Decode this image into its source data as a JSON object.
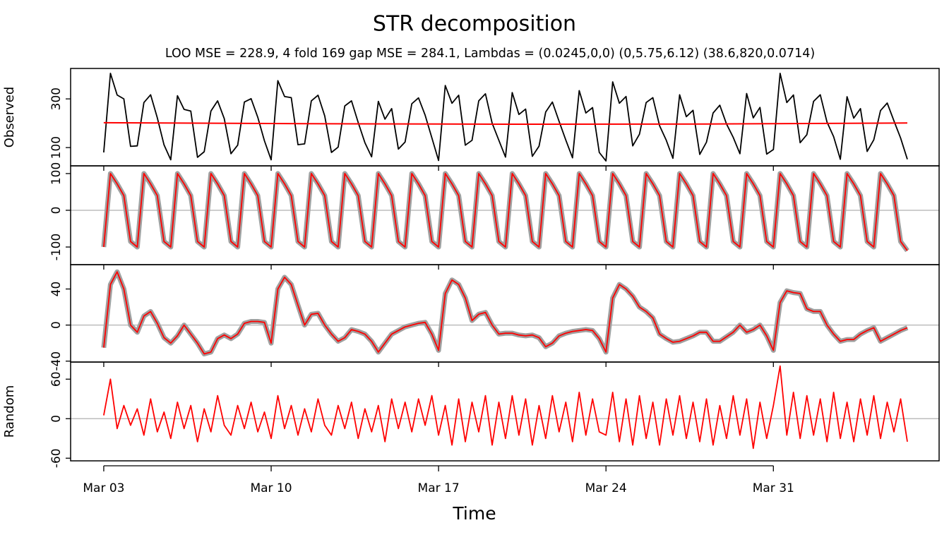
{
  "chart_data": {
    "type": "line",
    "title": "STR decomposition",
    "subtitle": "LOO MSE = 228.9, 4 fold 169 gap MSE = 284.1, Lambdas = (0.0245,0,0) (0,5.75,6.12) (38.6,820,0.0714)",
    "xlabel": "Time",
    "xlim": [
      -0.99,
      24.95
    ],
    "xticks": [
      {
        "value": 0,
        "label": "Mar 03"
      },
      {
        "value": 5,
        "label": "Mar 10"
      },
      {
        "value": 10,
        "label": "Mar 17"
      },
      {
        "value": 15,
        "label": "Mar 24"
      },
      {
        "value": 20,
        "label": "Mar 31"
      }
    ],
    "x": [
      0,
      0.2,
      0.4,
      0.6,
      0.8,
      1,
      1.2,
      1.4,
      1.6,
      1.8,
      2,
      2.2,
      2.4,
      2.6,
      2.8,
      3,
      3.2,
      3.4,
      3.6,
      3.8,
      4,
      4.2,
      4.4,
      4.6,
      4.8,
      5,
      5.2,
      5.4,
      5.6,
      5.8,
      6,
      6.2,
      6.4,
      6.6,
      6.8,
      7,
      7.2,
      7.4,
      7.6,
      7.8,
      8,
      8.2,
      8.4,
      8.6,
      8.8,
      9,
      9.2,
      9.4,
      9.6,
      9.8,
      10,
      10.2,
      10.4,
      10.6,
      10.8,
      11,
      11.2,
      11.4,
      11.6,
      11.8,
      12,
      12.2,
      12.4,
      12.6,
      12.8,
      13,
      13.2,
      13.4,
      13.6,
      13.8,
      14,
      14.2,
      14.4,
      14.6,
      14.8,
      15,
      15.2,
      15.4,
      15.6,
      15.8,
      16,
      16.2,
      16.4,
      16.6,
      16.8,
      17,
      17.2,
      17.4,
      17.6,
      17.8,
      18,
      18.2,
      18.4,
      18.6,
      18.8,
      19,
      19.2,
      19.4,
      19.6,
      19.8,
      20,
      20.2,
      20.4,
      20.6,
      20.8,
      21,
      21.2,
      21.4,
      21.6,
      21.8,
      22,
      22.2,
      22.4,
      22.6,
      22.8,
      23,
      23.2,
      23.4,
      23.6,
      23.8,
      24
    ],
    "panels": [
      {
        "ylabel": "Observed",
        "color": "#000000",
        "ylim": [
          25,
          425
        ],
        "yticks": [
          100,
          300
        ],
        "values": [
          80,
          405,
          316,
          300,
          105,
          107,
          285,
          317,
          222,
          111,
          50,
          313,
          257,
          250,
          60,
          83,
          250,
          292,
          219,
          75,
          110,
          287,
          301,
          224,
          128,
          50,
          375,
          310,
          305,
          112,
          115,
          292,
          315,
          230,
          80,
          102,
          271,
          292,
          203,
          120,
          62,
          290,
          217,
          260,
          94,
          123,
          280,
          304,
          233,
          140,
          47,
          355,
          282,
          315,
          110,
          130,
          292,
          321,
          200,
          130,
          61,
          326,
          236,
          258,
          64,
          106,
          246,
          287,
          208,
          131,
          58,
          334,
          242,
          264,
          80,
          45,
          370,
          282,
          310,
          107,
          155,
          285,
          305,
          190,
          130,
          56,
          317,
          227,
          253,
          72,
          122,
          242,
          274,
          197,
          142,
          75,
          322,
          222,
          265,
          73,
          92,
          405,
          285,
          316,
          120,
          153,
          290,
          317,
          205,
          145,
          52,
          309,
          221,
          260,
          84,
          132,
          252,
          283,
          210,
          139,
          52
        ],
        "overlay": {
          "color": "#ff0000",
          "x": [
            0,
            6,
            12,
            18,
            24
          ],
          "values": [
            202,
            198,
            196,
            197,
            201
          ]
        }
      },
      {
        "color": "#ff0000",
        "band_color": "#a0a0a0",
        "ylim": [
          -148,
          121
        ],
        "yticks": [
          -100,
          0,
          100
        ],
        "values": [
          -100,
          100,
          72,
          40,
          -85,
          -100,
          100,
          72,
          40,
          -85,
          -100,
          100,
          72,
          40,
          -85,
          -100,
          100,
          72,
          40,
          -85,
          -100,
          100,
          72,
          40,
          -85,
          -100,
          100,
          72,
          40,
          -85,
          -100,
          100,
          72,
          40,
          -85,
          -100,
          100,
          72,
          40,
          -85,
          -100,
          100,
          72,
          40,
          -85,
          -100,
          100,
          72,
          40,
          -85,
          -100,
          100,
          72,
          40,
          -85,
          -100,
          100,
          72,
          40,
          -85,
          -100,
          100,
          72,
          40,
          -85,
          -100,
          100,
          72,
          40,
          -85,
          -100,
          100,
          72,
          40,
          -85,
          -100,
          100,
          72,
          40,
          -85,
          -100,
          100,
          72,
          40,
          -85,
          -100,
          100,
          72,
          40,
          -85,
          -100,
          100,
          72,
          40,
          -85,
          -100,
          100,
          72,
          40,
          -85,
          -100,
          100,
          72,
          40,
          -85,
          -100,
          100,
          72,
          40,
          -85,
          -100,
          100,
          72,
          40,
          -85,
          -100,
          100,
          72,
          40,
          -85,
          -110
        ]
      },
      {
        "color": "#ff0000",
        "band_color": "#a0a0a0",
        "ylim": [
          -41,
          67
        ],
        "yticks": [
          -40,
          0,
          40
        ],
        "values": [
          -25,
          45,
          59,
          40,
          0,
          -8,
          10,
          15,
          2,
          -14,
          -20,
          -12,
          0,
          -10,
          -20,
          -32,
          -30,
          -15,
          -11,
          -15,
          -10,
          2,
          4,
          4,
          3,
          -20,
          40,
          53,
          45,
          22,
          0,
          12,
          13,
          0,
          -10,
          -18,
          -14,
          -5,
          -7,
          -10,
          -18,
          -30,
          -20,
          -10,
          -6,
          -2,
          0,
          2,
          3,
          -10,
          -28,
          35,
          50,
          45,
          30,
          5,
          12,
          14,
          0,
          -10,
          -9,
          -9,
          -11,
          -12,
          -11,
          -14,
          -24,
          -20,
          -12,
          -9,
          -7,
          -6,
          -5,
          -6,
          -15,
          -30,
          30,
          45,
          40,
          32,
          20,
          15,
          8,
          -10,
          -15,
          -19,
          -18,
          -15,
          -12,
          -8,
          -8,
          -18,
          -18,
          -13,
          -8,
          0,
          -8,
          -5,
          0,
          -12,
          -28,
          25,
          38,
          36,
          35,
          18,
          15,
          15,
          0,
          -10,
          -18,
          -16,
          -16,
          -10,
          -6,
          -3,
          -18,
          -14,
          -10,
          -6,
          -3
        ]
      },
      {
        "ylabel": "Random",
        "color": "#ff0000",
        "ylim": [
          -64,
          86
        ],
        "yticks": [
          -60,
          0,
          60
        ],
        "values": [
          5,
          60,
          -15,
          20,
          -10,
          15,
          -25,
          30,
          -20,
          10,
          -30,
          25,
          -15,
          20,
          -35,
          15,
          -20,
          35,
          -10,
          -25,
          20,
          -15,
          25,
          -20,
          10,
          -30,
          35,
          -15,
          20,
          -25,
          15,
          -20,
          30,
          -10,
          -25,
          20,
          -15,
          25,
          -30,
          15,
          -20,
          20,
          -35,
          30,
          -15,
          25,
          -20,
          30,
          -10,
          35,
          -25,
          20,
          -40,
          30,
          -35,
          25,
          -20,
          35,
          -40,
          25,
          -30,
          35,
          -25,
          30,
          -40,
          20,
          -30,
          35,
          -20,
          25,
          -35,
          40,
          -25,
          30,
          -20,
          -25,
          40,
          -35,
          30,
          -40,
          35,
          -30,
          25,
          -40,
          30,
          -25,
          35,
          -30,
          25,
          -35,
          30,
          -40,
          20,
          -30,
          35,
          -25,
          30,
          -45,
          25,
          -30,
          20,
          80,
          -25,
          40,
          -30,
          35,
          -25,
          30,
          -35,
          40,
          -30,
          25,
          -35,
          30,
          -25,
          35,
          -30,
          25,
          -20,
          30,
          -35
        ]
      }
    ]
  }
}
